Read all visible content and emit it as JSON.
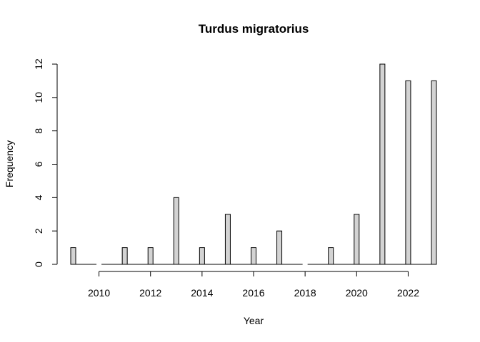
{
  "chart_data": {
    "type": "bar",
    "title": "Turdus migratorius",
    "xlabel": "Year",
    "ylabel": "Frequency",
    "categories": [
      2009,
      2010,
      2011,
      2012,
      2013,
      2014,
      2015,
      2016,
      2017,
      2018,
      2019,
      2020,
      2021,
      2022,
      2023
    ],
    "values": [
      1,
      0,
      1,
      1,
      4,
      1,
      3,
      1,
      2,
      0,
      1,
      3,
      12,
      11,
      11
    ],
    "xlim": [
      2009,
      2023
    ],
    "ylim": [
      0,
      12
    ],
    "x_ticks": [
      2010,
      2012,
      2014,
      2016,
      2018,
      2020,
      2022
    ],
    "y_ticks": [
      0,
      2,
      4,
      6,
      8,
      10,
      12
    ],
    "grid": false,
    "bar_color": "#d3d3d3"
  }
}
